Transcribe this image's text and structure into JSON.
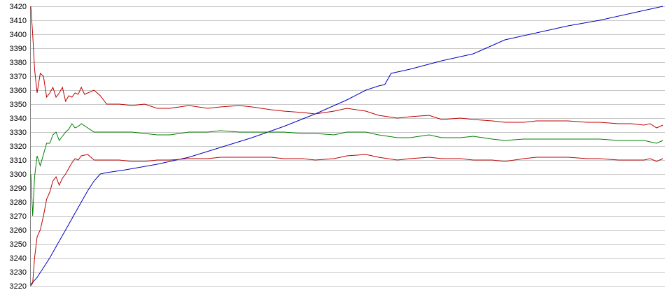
{
  "chart_data": {
    "type": "line",
    "title": "",
    "xlabel": "",
    "ylabel": "",
    "ylim": [
      3220,
      3420
    ],
    "yticks": [
      3220,
      3230,
      3240,
      3250,
      3260,
      3270,
      3280,
      3290,
      3300,
      3310,
      3320,
      3330,
      3340,
      3350,
      3360,
      3370,
      3380,
      3390,
      3400,
      3410,
      3420
    ],
    "grid": true,
    "legend": "none",
    "xlim": [
      0,
      100
    ],
    "series": [
      {
        "color": "#0000c0",
        "x": [
          0,
          1,
          2,
          3,
          4,
          5,
          6,
          7,
          8,
          9,
          10,
          11,
          12,
          15,
          20,
          25,
          30,
          35,
          40,
          45,
          50,
          53,
          55,
          56,
          57,
          60,
          65,
          70,
          72,
          75,
          80,
          85,
          90,
          95,
          100
        ],
        "y": [
          3221,
          3226,
          3233,
          3240,
          3248,
          3256,
          3264,
          3272,
          3280,
          3288,
          3295,
          3300,
          3301,
          3303,
          3307,
          3312,
          3319,
          3326,
          3334,
          3343,
          3353,
          3360,
          3363,
          3364,
          3372,
          3375,
          3381,
          3386,
          3390,
          3396,
          3401,
          3406,
          3410,
          3415,
          3420
        ]
      },
      {
        "color": "#c00000",
        "x": [
          0,
          0.3,
          0.6,
          1,
          1.5,
          2,
          2.5,
          3,
          3.5,
          4,
          4.5,
          5,
          5.5,
          6,
          6.5,
          7,
          7.5,
          8,
          8.5,
          9,
          10,
          11,
          12,
          14,
          16,
          18,
          20,
          22,
          25,
          28,
          30,
          33,
          35,
          38,
          40,
          43,
          45,
          48,
          50,
          53,
          55,
          58,
          60,
          63,
          65,
          68,
          70,
          73,
          75,
          78,
          80,
          83,
          85,
          88,
          90,
          93,
          95,
          97,
          98,
          99,
          100
        ],
        "y": [
          3420,
          3400,
          3375,
          3358,
          3372,
          3370,
          3355,
          3358,
          3362,
          3355,
          3358,
          3362,
          3352,
          3356,
          3355,
          3358,
          3357,
          3362,
          3357,
          3358,
          3360,
          3356,
          3350,
          3350,
          3349,
          3350,
          3347,
          3347,
          3349,
          3347,
          3348,
          3349,
          3348,
          3346,
          3345,
          3344,
          3343,
          3345,
          3347,
          3345,
          3342,
          3340,
          3341,
          3342,
          3339,
          3340,
          3339,
          3338,
          3337,
          3337,
          3338,
          3338,
          3338,
          3337,
          3337,
          3336,
          3336,
          3335,
          3336,
          3333,
          3335
        ]
      },
      {
        "color": "#008000",
        "x": [
          0,
          0.3,
          0.6,
          1,
          1.5,
          2,
          2.5,
          3,
          3.5,
          4,
          4.5,
          5,
          5.5,
          6,
          6.5,
          7,
          7.5,
          8,
          9,
          10,
          11,
          12,
          14,
          16,
          18,
          20,
          22,
          25,
          28,
          30,
          33,
          35,
          38,
          40,
          43,
          45,
          48,
          50,
          53,
          55,
          58,
          60,
          63,
          65,
          68,
          70,
          73,
          75,
          78,
          80,
          83,
          85,
          88,
          90,
          93,
          95,
          97,
          98,
          99,
          100
        ],
        "y": [
          3300,
          3270,
          3298,
          3313,
          3306,
          3314,
          3322,
          3322,
          3328,
          3330,
          3324,
          3327,
          3330,
          3332,
          3336,
          3333,
          3334,
          3336,
          3333,
          3330,
          3330,
          3330,
          3330,
          3330,
          3329,
          3328,
          3328,
          3330,
          3330,
          3331,
          3330,
          3330,
          3330,
          3330,
          3329,
          3329,
          3328,
          3330,
          3330,
          3328,
          3326,
          3326,
          3328,
          3326,
          3326,
          3327,
          3325,
          3324,
          3325,
          3325,
          3325,
          3325,
          3325,
          3325,
          3324,
          3324,
          3324,
          3323,
          3322,
          3324
        ]
      },
      {
        "color": "#c00000",
        "x": [
          0,
          0.3,
          0.6,
          1,
          1.5,
          2,
          2.5,
          3,
          3.5,
          4,
          4.5,
          5,
          5.5,
          6,
          6.5,
          7,
          7.5,
          8,
          9,
          10,
          11,
          12,
          14,
          16,
          18,
          20,
          22,
          25,
          28,
          30,
          33,
          35,
          38,
          40,
          43,
          45,
          48,
          50,
          53,
          55,
          58,
          60,
          63,
          65,
          68,
          70,
          73,
          75,
          78,
          80,
          83,
          85,
          88,
          90,
          93,
          95,
          97,
          98,
          99,
          100
        ],
        "y": [
          3220,
          3222,
          3240,
          3255,
          3260,
          3270,
          3282,
          3287,
          3295,
          3298,
          3292,
          3297,
          3300,
          3304,
          3308,
          3311,
          3310,
          3313,
          3314,
          3310,
          3310,
          3310,
          3310,
          3309,
          3309,
          3310,
          3310,
          3311,
          3311,
          3312,
          3312,
          3312,
          3312,
          3311,
          3311,
          3310,
          3311,
          3313,
          3314,
          3312,
          3310,
          3311,
          3312,
          3311,
          3311,
          3310,
          3310,
          3309,
          3311,
          3312,
          3312,
          3312,
          3311,
          3311,
          3310,
          3310,
          3310,
          3311,
          3309,
          3311
        ]
      }
    ]
  }
}
